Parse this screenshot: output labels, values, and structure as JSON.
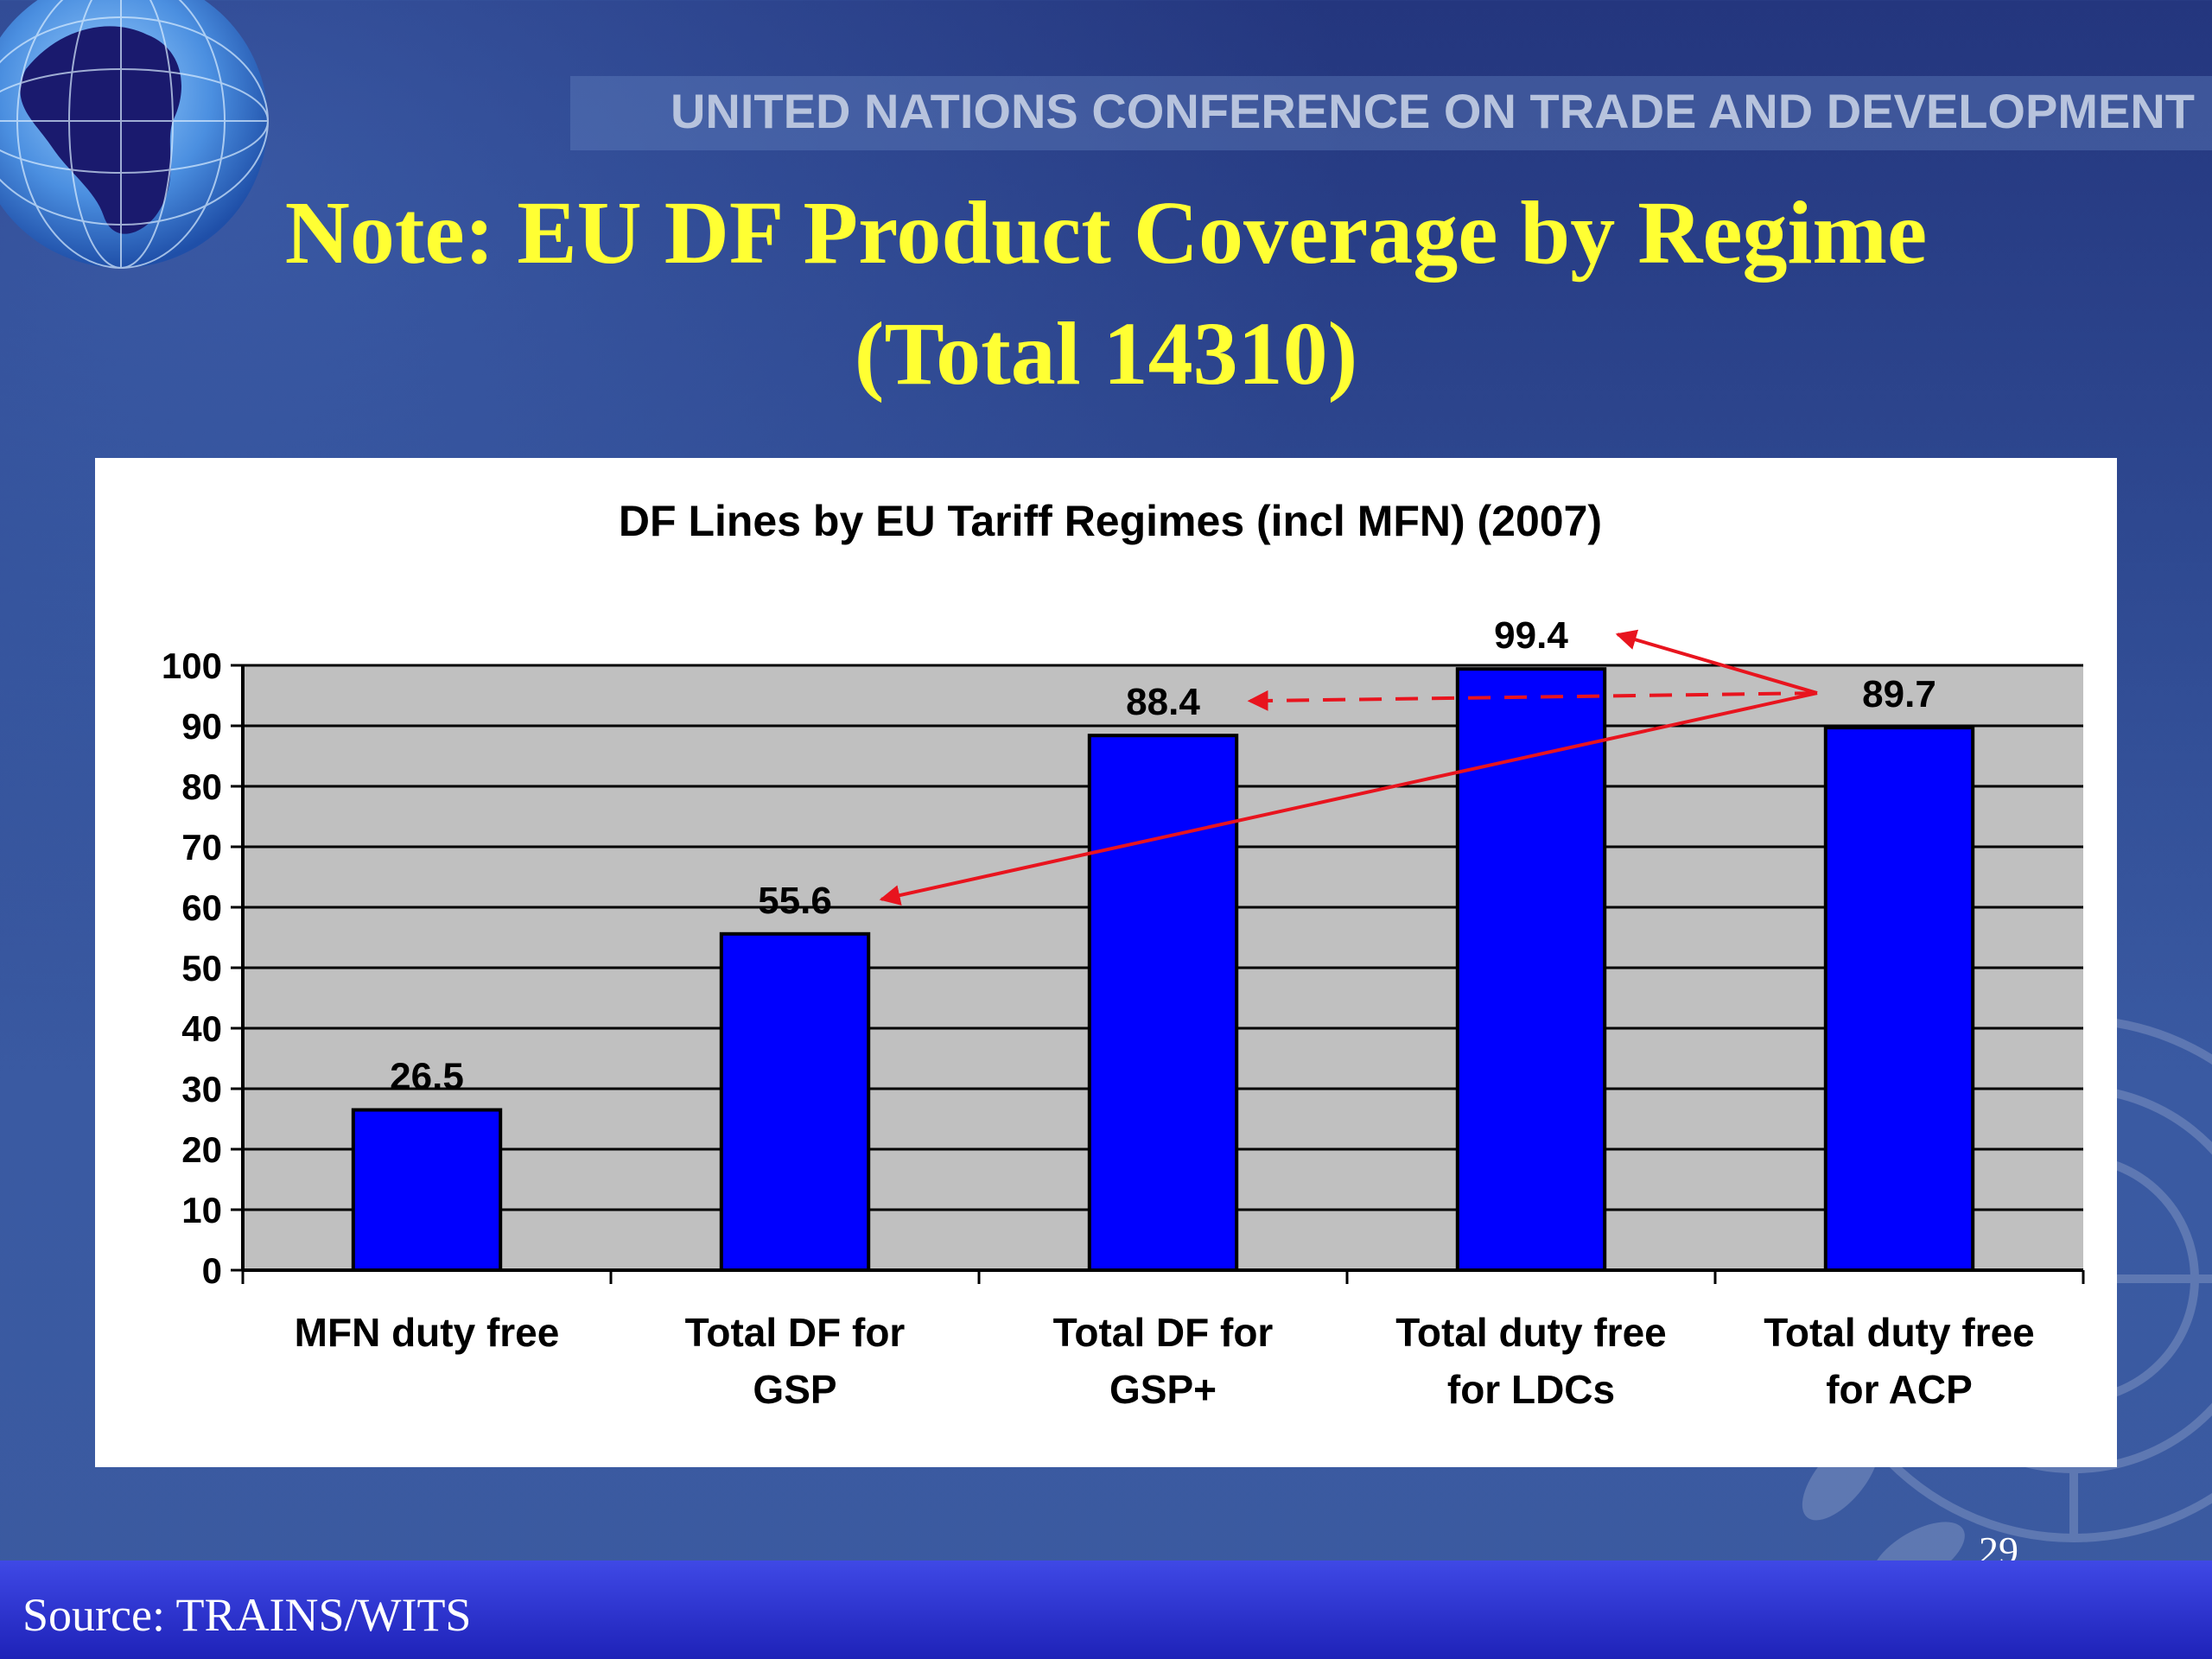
{
  "header": {
    "org_banner": "UNITED NATIONS CONFERENCE ON TRADE AND DEVELOPMENT"
  },
  "slide": {
    "title_line1": "Note: EU DF Product Coverage by Regime",
    "title_line2": "(Total 14310)",
    "page_number": "29"
  },
  "footer": {
    "source": "Source: TRAINS/WITS"
  },
  "icons": [
    "globe-icon",
    "un-emblem-icon"
  ],
  "colors": {
    "bar": "#0000ff",
    "plot_bg": "#c0c0c0",
    "title_yellow": "#ffff33",
    "arrow_red": "#e8141e",
    "footer_blue": "#2a2fd0"
  },
  "chart_data": {
    "type": "bar",
    "title": "DF Lines by EU Tariff Regimes (incl MFN) (2007)",
    "categories": [
      [
        "MFN duty free"
      ],
      [
        "Total DF for",
        "GSP"
      ],
      [
        "Total DF for",
        "GSP+"
      ],
      [
        "Total duty free",
        "for LDCs"
      ],
      [
        "Total duty free",
        "for ACP"
      ]
    ],
    "values": [
      26.5,
      55.6,
      88.4,
      99.4,
      89.7
    ],
    "data_labels": [
      "26.5",
      "55.6",
      "88.4",
      "99.4",
      "89.7"
    ],
    "ylim": [
      0,
      100
    ],
    "yticks": [
      0,
      10,
      20,
      30,
      40,
      50,
      60,
      70,
      80,
      90,
      100
    ],
    "grid": true,
    "legend": "none",
    "annotations": [
      {
        "type": "arrow",
        "from_category": 4,
        "to_category": 1,
        "style": "solid"
      },
      {
        "type": "arrow",
        "from_category": 4,
        "to_category": 2,
        "style": "dashed"
      },
      {
        "type": "arrow",
        "from_category": 4,
        "to_category": 3,
        "style": "solid"
      }
    ]
  }
}
